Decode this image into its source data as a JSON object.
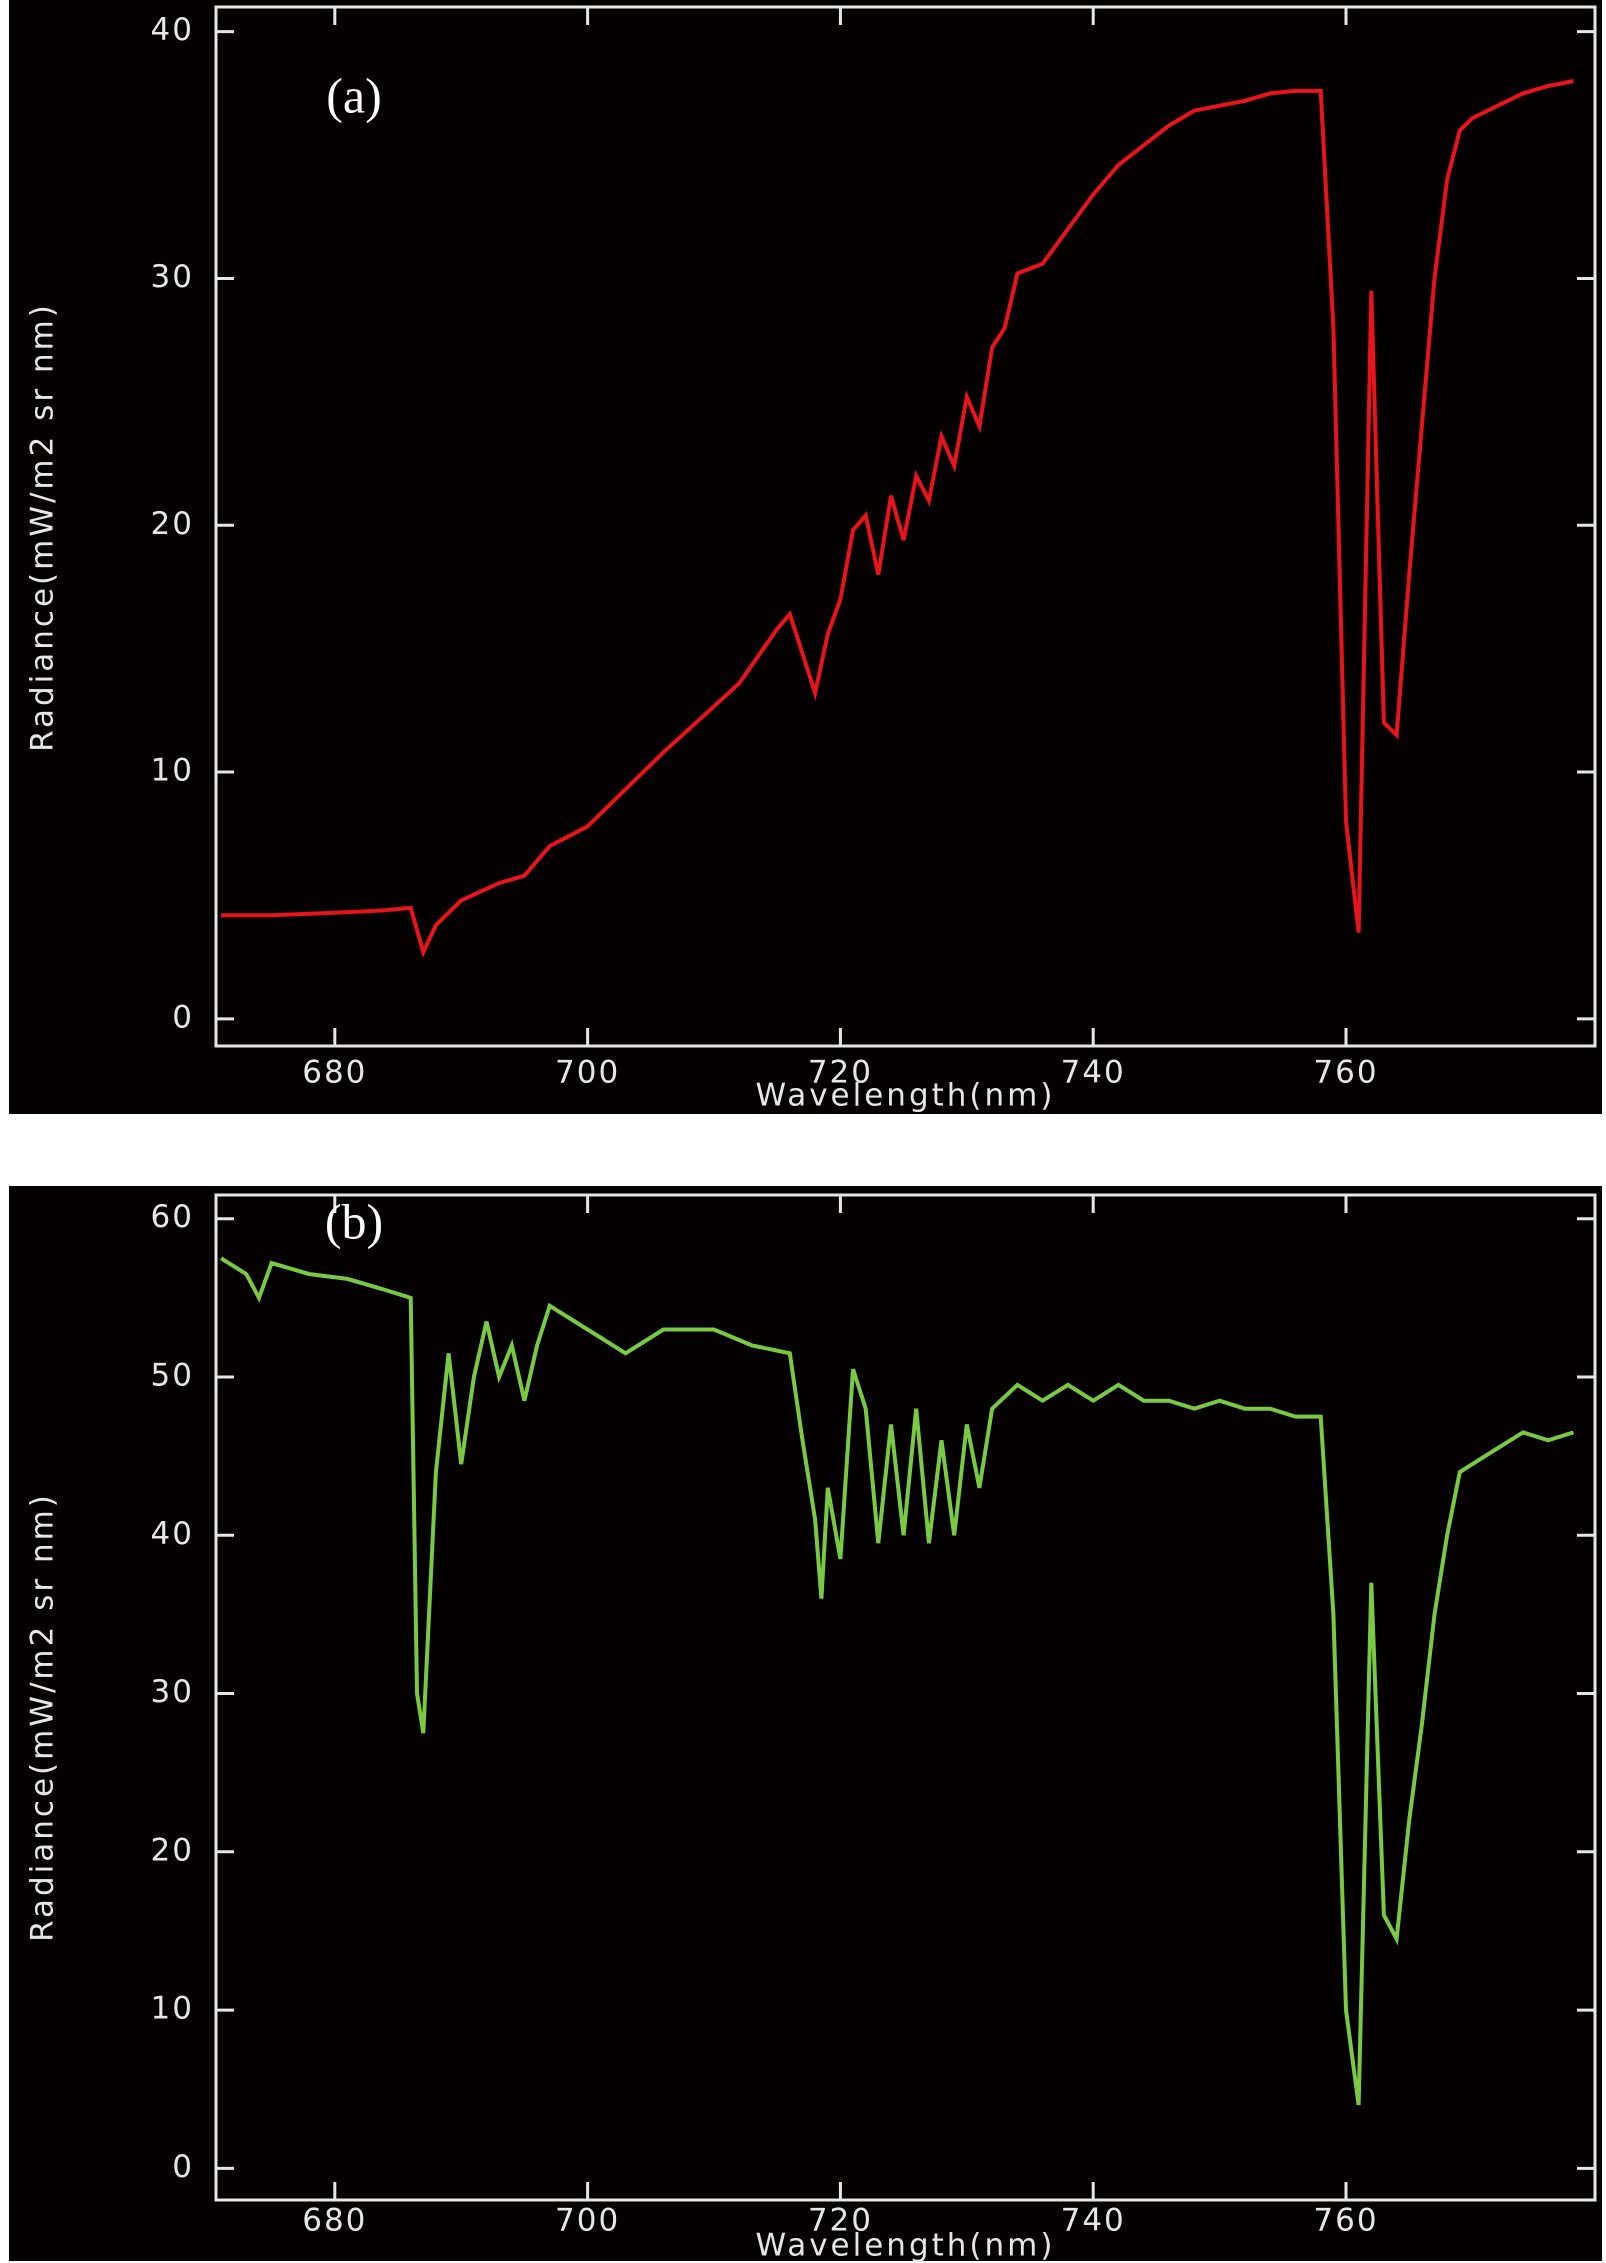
{
  "chart_data": [
    {
      "type": "line",
      "annotation": "(a)",
      "xlabel": "Wavelength(nm)",
      "ylabel": "Radiance(mW/m2 sr nm)",
      "xlim": [
        670.6,
        779.7
      ],
      "ylim": [
        -1.1,
        41
      ],
      "xticks": [
        680,
        700,
        720,
        740,
        760
      ],
      "yticks": [
        0,
        10,
        20,
        30,
        40
      ],
      "x": [
        671,
        675,
        680,
        684,
        686,
        687,
        688,
        690,
        693,
        695,
        697,
        700,
        703,
        706,
        709,
        712,
        715,
        716,
        717,
        718,
        719,
        720,
        721,
        722,
        723,
        724,
        725,
        726,
        727,
        728,
        729,
        730,
        731,
        732,
        733,
        734,
        736,
        738,
        740,
        742,
        744,
        746,
        748,
        750,
        752,
        754,
        756,
        758,
        759,
        760,
        761,
        762,
        763,
        764,
        765,
        766,
        767,
        768,
        769,
        770,
        772,
        774,
        776,
        778
      ],
      "series": [
        {
          "color": "#e8141c",
          "values": [
            4.2,
            4.2,
            4.3,
            4.4,
            4.5,
            2.7,
            3.8,
            4.8,
            5.5,
            5.8,
            7.0,
            7.8,
            9.3,
            10.8,
            12.2,
            13.6,
            15.8,
            16.4,
            14.8,
            13.2,
            15.6,
            17.0,
            19.8,
            20.4,
            18.0,
            21.2,
            19.4,
            22.0,
            21.0,
            23.6,
            22.4,
            25.2,
            24.0,
            27.2,
            28.0,
            30.2,
            30.6,
            32.0,
            33.4,
            34.6,
            35.4,
            36.2,
            36.8,
            37.0,
            37.2,
            37.5,
            37.6,
            37.6,
            28.0,
            8.0,
            3.5,
            29.5,
            12.0,
            11.5,
            18.0,
            24.0,
            30.0,
            34.0,
            36.0,
            36.5,
            37.0,
            37.5,
            37.8,
            38.0
          ]
        }
      ]
    },
    {
      "type": "line",
      "annotation": "(b)",
      "xlabel": "Wavelength(nm)",
      "ylabel": "Radiance(mW/m2 sr nm)",
      "xlim": [
        670.6,
        779.7
      ],
      "ylim": [
        -2,
        61.5
      ],
      "xticks": [
        680,
        700,
        720,
        740,
        760
      ],
      "yticks": [
        0,
        10,
        20,
        30,
        40,
        50,
        60
      ],
      "x": [
        671,
        673,
        674,
        675,
        678,
        681,
        684,
        686,
        686.5,
        687,
        688,
        689,
        690,
        691,
        692,
        693,
        694,
        695,
        696,
        697,
        700,
        703,
        706,
        710,
        713,
        716,
        717,
        718,
        718.5,
        719,
        720,
        721,
        722,
        723,
        724,
        725,
        726,
        727,
        728,
        729,
        730,
        731,
        732,
        734,
        736,
        738,
        740,
        742,
        744,
        746,
        748,
        750,
        752,
        754,
        756,
        758,
        759,
        760,
        761,
        762,
        763,
        764,
        765,
        766,
        767,
        768,
        769,
        770,
        772,
        774,
        776,
        778
      ],
      "series": [
        {
          "color": "#7ac943",
          "values": [
            57.5,
            56.5,
            55.0,
            57.2,
            56.5,
            56.2,
            55.5,
            55.0,
            30,
            27.5,
            44,
            51.5,
            44.5,
            50,
            53.5,
            50,
            52,
            48.5,
            52,
            54.5,
            53,
            51.5,
            53,
            53,
            52,
            51.5,
            46,
            41,
            36,
            43,
            38.5,
            50.5,
            48,
            39.5,
            47,
            40,
            48,
            39.5,
            46,
            40,
            47,
            43,
            48,
            49.5,
            48.5,
            49.5,
            48.5,
            49.5,
            48.5,
            48.5,
            48,
            48.5,
            48,
            48,
            47.5,
            47.5,
            35,
            10,
            4,
            37,
            16,
            14.5,
            22,
            28,
            35,
            40,
            44,
            44.5,
            45.5,
            46.5,
            46,
            46.5
          ]
        }
      ]
    }
  ]
}
